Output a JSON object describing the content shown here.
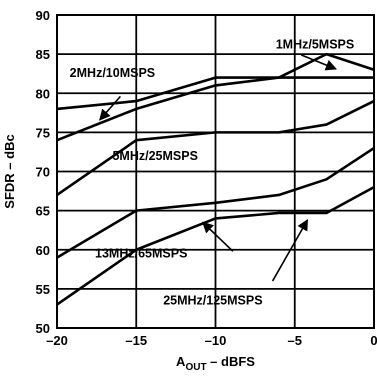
{
  "chart_data": {
    "type": "line",
    "title": "",
    "xlabel": {
      "main": "A",
      "sub": "OUT",
      "rest": " – dBFS"
    },
    "ylabel": "SFDR – dBc",
    "xlim": [
      -20,
      0
    ],
    "ylim": [
      50,
      90
    ],
    "x_ticks": [
      -20,
      -15,
      -10,
      -5,
      0
    ],
    "x_tick_labels": [
      "–20",
      "–15",
      "–10",
      "–5",
      "0"
    ],
    "y_ticks": [
      50,
      55,
      60,
      65,
      70,
      75,
      80,
      85,
      90
    ],
    "y_tick_labels": [
      "50",
      "55",
      "60",
      "65",
      "70",
      "75",
      "80",
      "85",
      "90"
    ],
    "grid": true,
    "legend": "none (curves labeled inline)",
    "series": [
      {
        "name": "1MHz/5MSPS",
        "x": [
          -20,
          -15,
          -10,
          -6,
          -3,
          0
        ],
        "y": [
          78,
          79,
          82,
          82,
          82,
          82
        ]
      },
      {
        "name": "2MHz/10MSPS",
        "x": [
          -20,
          -15,
          -10,
          -6,
          -3,
          0
        ],
        "y": [
          74,
          78,
          81,
          82,
          85,
          83
        ]
      },
      {
        "name": "5MHz/25MSPS",
        "x": [
          -20,
          -15,
          -10,
          -6,
          -3,
          0
        ],
        "y": [
          67,
          74,
          75,
          75,
          76,
          79
        ]
      },
      {
        "name": "13MHz/65MSPS",
        "x": [
          -20,
          -15,
          -10,
          -6,
          -3,
          0
        ],
        "y": [
          59,
          65,
          66,
          67,
          69,
          73
        ]
      },
      {
        "name": "25MHz/125MSPS",
        "x": [
          -20,
          -15,
          -10,
          -6,
          -3,
          0
        ],
        "y": [
          53,
          60,
          64,
          64.7,
          64.7,
          68
        ]
      }
    ],
    "annotations": [
      {
        "text": "1MHz/5MSPS",
        "x": -6.2,
        "y": 85.7,
        "anchor": "start",
        "arrow_from": [
          -4.6,
          84.9
        ],
        "arrow_to": [
          -2.4,
          83.1
        ]
      },
      {
        "text": "2MHz/10MSPS",
        "x": -19.2,
        "y": 82.1,
        "anchor": "start",
        "arrow_from": [
          -16.0,
          79.6
        ],
        "arrow_to": [
          -17.3,
          76.6
        ]
      },
      {
        "text": "5MHz/25MSPS",
        "x": -16.5,
        "y": 71.5,
        "anchor": "start"
      },
      {
        "text": "13MHz/65MSPS",
        "x": -17.6,
        "y": 59.0,
        "anchor": "start",
        "arrow_from": [
          -8.9,
          59.8
        ],
        "arrow_to": [
          -10.8,
          63.5
        ]
      },
      {
        "text": "25MHz/125MSPS",
        "x": -13.3,
        "y": 53.0,
        "anchor": "start",
        "arrow_from": [
          -6.4,
          56.0
        ],
        "arrow_to": [
          -4.2,
          63.8
        ]
      }
    ]
  }
}
